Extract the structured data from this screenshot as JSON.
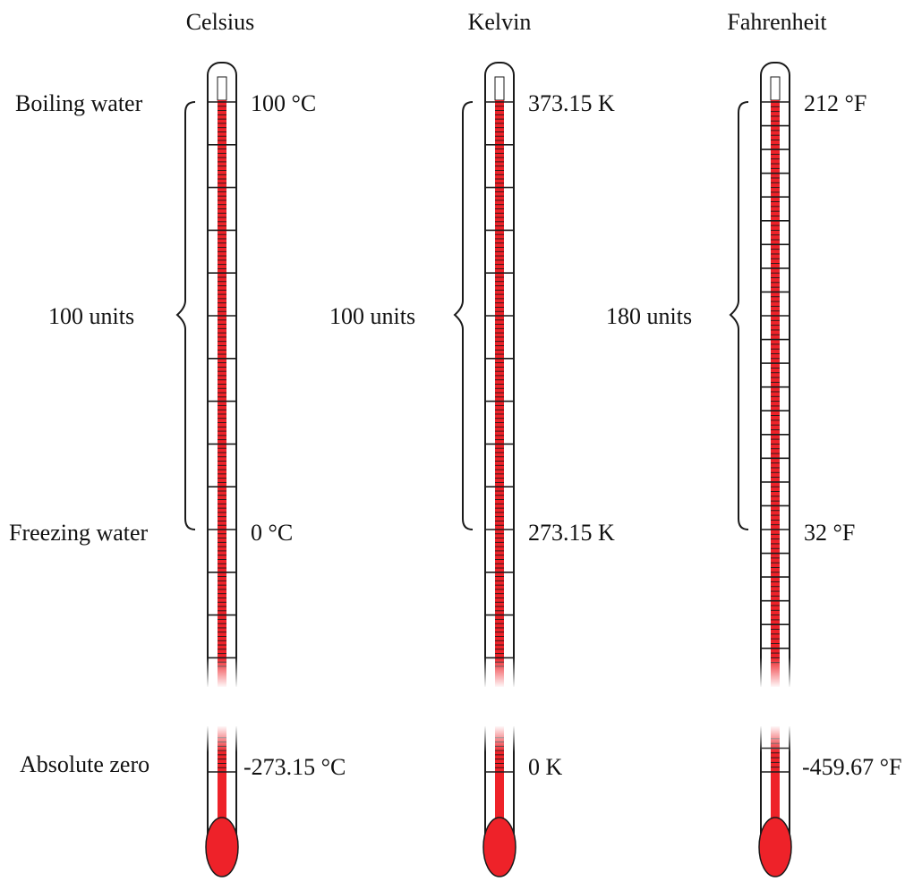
{
  "colors": {
    "mercury": "#ee2229",
    "outline": "#1a1a1a",
    "text": "#111111",
    "background": "#ffffff"
  },
  "row_labels": {
    "boiling": "Boiling water",
    "freezing": "Freezing water",
    "absolute_zero": "Absolute zero"
  },
  "scales": [
    {
      "name": "Celsius",
      "boiling_label": "100 °C",
      "freezing_label": "0 °C",
      "absolute_zero_label": "-273.15 °C",
      "span_label": "100 units",
      "span_units": 100,
      "major_step": 10,
      "minor_step": 1
    },
    {
      "name": "Kelvin",
      "boiling_label": "373.15 K",
      "freezing_label": "273.15 K",
      "absolute_zero_label": "0 K",
      "span_label": "100 units",
      "span_units": 100,
      "major_step": 10,
      "minor_step": 1
    },
    {
      "name": "Fahrenheit",
      "boiling_label": "212 °F",
      "freezing_label": "32 °F",
      "absolute_zero_label": "-459.67 °F",
      "span_label": "180 units",
      "span_units": 180,
      "major_step": 10,
      "minor_step": 2
    }
  ]
}
